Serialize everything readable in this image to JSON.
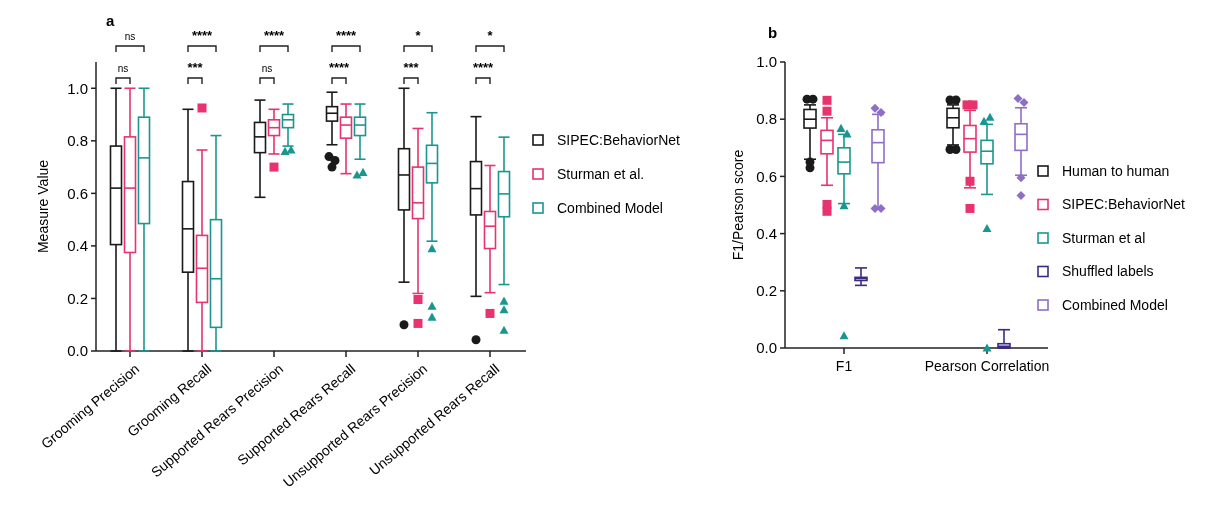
{
  "chart_data": [
    {
      "type": "box",
      "title": "a",
      "ylabel": "Measure Value",
      "categories": [
        "Grooming Precision",
        "Grooming Recall",
        "Supported Rears Precision",
        "Supported Rears Recall",
        "Unsupported Rears Precision",
        "Unsupported Rears Recall"
      ],
      "ylim": [
        0,
        1.1
      ],
      "yticks": [
        {
          "value": 0,
          "label": "0.0"
        },
        {
          "value": 0.2,
          "label": "0.2"
        },
        {
          "value": 0.4,
          "label": "0.4"
        },
        {
          "value": 0.6,
          "label": "0.6"
        },
        {
          "value": 0.8,
          "label": "0.8"
        },
        {
          "value": 1,
          "label": "1.0"
        }
      ],
      "legend": "right",
      "annotations": [
        "ns",
        "ns",
        "***",
        "****",
        "ns",
        "****",
        "****",
        "****",
        "***",
        "*",
        "****",
        "*"
      ],
      "series": [
        {
          "name": "SIPEC:BehaviorNet",
          "color": "#1a1a1a",
          "marker": "circle",
          "boxes": [
            {
              "low": 0,
              "q1": 0.405,
              "median": 0.62,
              "q3": 0.78,
              "high": 1.0
            },
            {
              "low": 0,
              "q1": 0.3,
              "median": 0.465,
              "q3": 0.645,
              "high": 0.92
            },
            {
              "low": 0.585,
              "q1": 0.755,
              "median": 0.815,
              "q3": 0.87,
              "high": 0.955
            },
            {
              "low": 0.785,
              "q1": 0.875,
              "median": 0.905,
              "q3": 0.93,
              "high": 0.985,
              "outliers": [
                0.74,
                0.725,
                0.7
              ]
            },
            {
              "low": 0.262,
              "q1": 0.537,
              "median": 0.67,
              "q3": 0.77,
              "high": 1.0,
              "outliers": [
                0.1
              ]
            },
            {
              "low": 0.208,
              "q1": 0.518,
              "median": 0.618,
              "q3": 0.721,
              "high": 0.892,
              "outliers": [
                0.043
              ]
            }
          ]
        },
        {
          "name": "Sturman et al.",
          "color": "#e8336e",
          "marker": "square",
          "boxes": [
            {
              "low": 0,
              "q1": 0.375,
              "median": 0.62,
              "q3": 0.815,
              "high": 1.0
            },
            {
              "low": 0,
              "q1": 0.185,
              "median": 0.315,
              "q3": 0.44,
              "high": 0.765,
              "outliers": [
                0.925
              ]
            },
            {
              "low": 0.75,
              "q1": 0.82,
              "median": 0.85,
              "q3": 0.88,
              "high": 0.92,
              "outliers": [
                0.7
              ]
            },
            {
              "low": 0.675,
              "q1": 0.81,
              "median": 0.86,
              "q3": 0.89,
              "high": 0.94
            },
            {
              "low": 0.219,
              "q1": 0.504,
              "median": 0.564,
              "q3": 0.7,
              "high": 0.847,
              "outliers": [
                0.196,
                0.105
              ]
            },
            {
              "low": 0.222,
              "q1": 0.39,
              "median": 0.475,
              "q3": 0.531,
              "high": 0.706,
              "outliers": [
                0.143
              ]
            }
          ]
        },
        {
          "name": "Combined Model",
          "color": "#1a9690",
          "marker": "triangle",
          "boxes": [
            {
              "low": 0,
              "q1": 0.485,
              "median": 0.735,
              "q3": 0.89,
              "high": 1.0
            },
            {
              "low": 0,
              "q1": 0.09,
              "median": 0.275,
              "q3": 0.5,
              "high": 0.82
            },
            {
              "low": 0.78,
              "q1": 0.85,
              "median": 0.88,
              "q3": 0.9,
              "high": 0.94,
              "outliers": [
                0.76,
                0.765
              ]
            },
            {
              "low": 0.73,
              "q1": 0.82,
              "median": 0.86,
              "q3": 0.89,
              "high": 0.94,
              "outliers": [
                0.67,
                0.68
              ]
            },
            {
              "low": 0.418,
              "q1": 0.64,
              "median": 0.714,
              "q3": 0.783,
              "high": 0.907,
              "outliers": [
                0.39,
                0.171,
                0.129
              ]
            },
            {
              "low": 0.253,
              "q1": 0.511,
              "median": 0.598,
              "q3": 0.683,
              "high": 0.814,
              "outliers": [
                0.19,
                0.157,
                0.079
              ]
            }
          ]
        }
      ]
    },
    {
      "type": "box",
      "title": "b",
      "ylabel": "F1/Pearson score",
      "categories": [
        "F1",
        "Pearson Correlation"
      ],
      "ylim": [
        0,
        1.0
      ],
      "yticks": [
        {
          "value": 0,
          "label": "0.0"
        },
        {
          "value": 0.2,
          "label": "0.2"
        },
        {
          "value": 0.4,
          "label": "0.4"
        },
        {
          "value": 0.6,
          "label": "0.6"
        },
        {
          "value": 0.8,
          "label": "0.8"
        },
        {
          "value": 1,
          "label": "1.0"
        }
      ],
      "legend": "right",
      "series": [
        {
          "name": "Human to human",
          "color": "#1a1a1a",
          "marker": "circle",
          "boxes": [
            {
              "low": 0.66,
              "q1": 0.769,
              "median": 0.8,
              "q3": 0.834,
              "high": 0.85,
              "outliers": [
                0.87,
                0.87,
                0.65,
                0.63
              ]
            },
            {
              "low": 0.71,
              "q1": 0.77,
              "median": 0.805,
              "q3": 0.838,
              "high": 0.85,
              "outliers": [
                0.867,
                0.867,
                0.694,
                0.694
              ]
            }
          ]
        },
        {
          "name": "SIPEC:BehaviorNet",
          "color": "#e8336e",
          "marker": "square",
          "boxes": [
            {
              "low": 0.569,
              "q1": 0.679,
              "median": 0.726,
              "q3": 0.761,
              "high": 0.805,
              "outliers": [
                0.866,
                0.828,
                0.502,
                0.478
              ]
            },
            {
              "low": 0.56,
              "q1": 0.685,
              "median": 0.732,
              "q3": 0.778,
              "high": 0.831,
              "outliers": [
                0.85,
                0.85,
                0.583,
                0.488
              ]
            }
          ]
        },
        {
          "name": "Sturman et al",
          "color": "#1a9690",
          "marker": "triangle",
          "boxes": [
            {
              "low": 0.505,
              "q1": 0.609,
              "median": 0.65,
              "q3": 0.7,
              "high": 0.747,
              "outliers": [
                0.768,
                0.749,
                0.498,
                0.043
              ]
            },
            {
              "low": 0.537,
              "q1": 0.644,
              "median": 0.688,
              "q3": 0.726,
              "high": 0.782,
              "outliers": [
                0.793,
                0.807,
                0.418,
                0
              ]
            }
          ]
        },
        {
          "name": "Shuffled labels",
          "color": "#3b2a85",
          "marker": "none",
          "boxes": [
            {
              "low": 0.219,
              "q1": 0.236,
              "median": 0.243,
              "q3": 0.247,
              "high": 0.28
            },
            {
              "low": 0,
              "q1": 0,
              "median": 0.006,
              "q3": 0.015,
              "high": 0.064
            }
          ]
        },
        {
          "name": "Combined Model",
          "color": "#8e6fc6",
          "marker": "diamond",
          "boxes": [
            {
              "low": 0.488,
              "q1": 0.648,
              "median": 0.718,
              "q3": 0.763,
              "high": 0.817,
              "outliers": [
                0.838,
                0.823,
                0.488,
                0.488
              ]
            },
            {
              "low": 0.604,
              "q1": 0.691,
              "median": 0.747,
              "q3": 0.784,
              "high": 0.84,
              "outliers": [
                0.872,
                0.858,
                0.595,
                0.533
              ]
            }
          ]
        }
      ]
    }
  ]
}
